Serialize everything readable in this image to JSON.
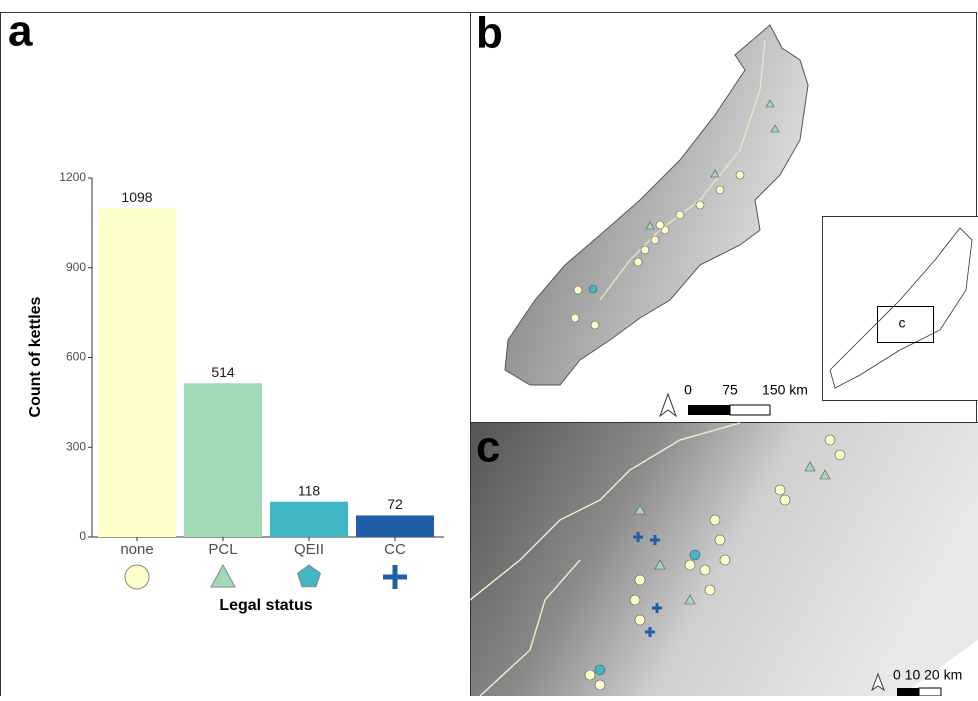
{
  "chart_data": {
    "type": "bar",
    "categories": [
      "none",
      "PCL",
      "QEII",
      "CC"
    ],
    "values": [
      1098,
      514,
      118,
      72
    ],
    "colors": [
      "#ffffcc",
      "#a1dab4",
      "#41b6c4",
      "#225ea8"
    ],
    "markers": [
      "circle",
      "triangle",
      "pentagon",
      "cross"
    ],
    "ylim": [
      0,
      1200
    ],
    "yticks": [
      0,
      300,
      600,
      900,
      1200
    ],
    "ylabel": "Count of kettles",
    "xlabel": "Legal status",
    "grid": false
  },
  "panel_labels": [
    "a",
    "b",
    "c"
  ],
  "map_b": {
    "scale_labels": [
      "0",
      "75",
      "150 km"
    ],
    "inset_label": "c"
  },
  "map_c": {
    "scale_label": "0  10 20 km"
  }
}
